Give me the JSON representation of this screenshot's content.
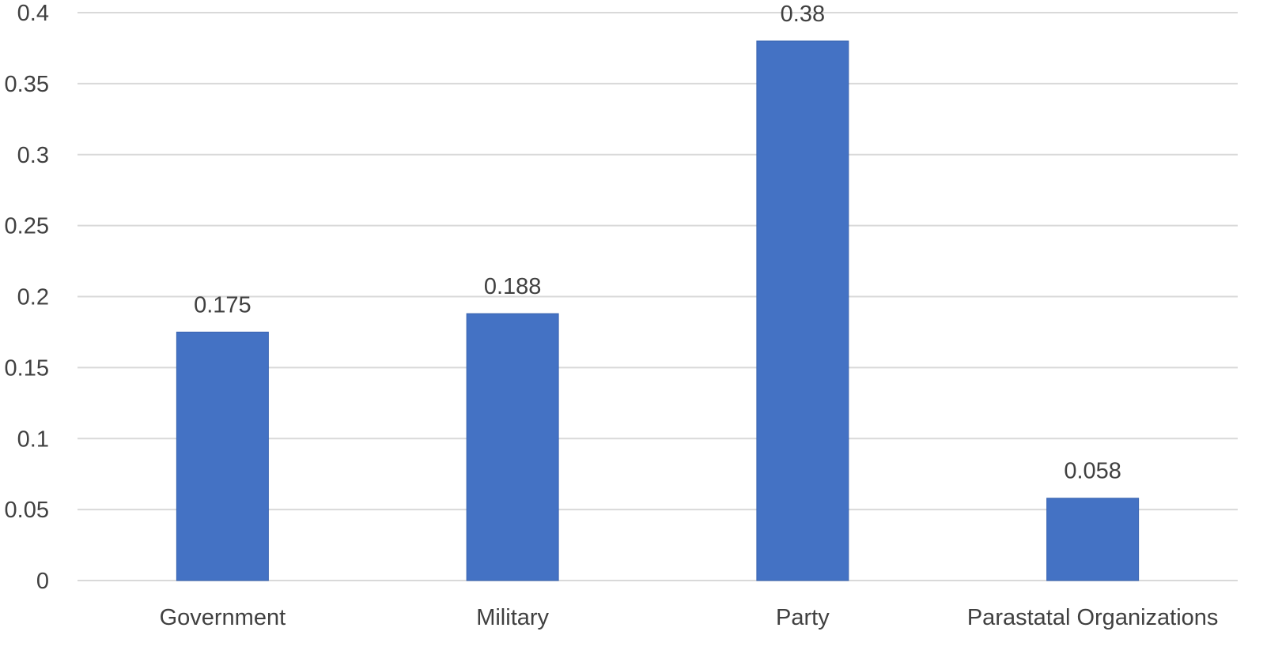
{
  "chart_data": {
    "type": "bar",
    "categories": [
      "Government",
      "Military",
      "Party",
      "Parastatal Organizations"
    ],
    "values": [
      0.175,
      0.188,
      0.38,
      0.058
    ],
    "data_labels": [
      "0.175",
      "0.188",
      "0.38",
      "0.058"
    ],
    "title": "",
    "xlabel": "",
    "ylabel": "",
    "ylim": [
      0,
      0.4
    ],
    "yticks": [
      0,
      0.05,
      0.1,
      0.15,
      0.2,
      0.25,
      0.3,
      0.35,
      0.4
    ],
    "ytick_labels": [
      "0",
      "0.05",
      "0.1",
      "0.15",
      "0.2",
      "0.25",
      "0.3",
      "0.35",
      "0.4"
    ],
    "grid": true,
    "legend": "none",
    "colors": {
      "bar": "#4472c4",
      "bar_edge": "#3a64b0",
      "grid": "#d9d9d9",
      "text": "#404040"
    }
  }
}
